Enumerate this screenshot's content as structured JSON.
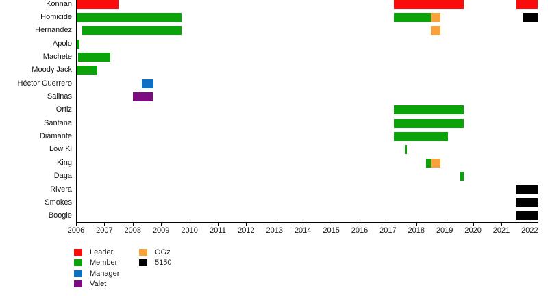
{
  "chart_data": {
    "type": "bar",
    "subtype": "gantt-timeline",
    "title": "",
    "xlabel": "",
    "ylabel": "",
    "x_range": [
      2006,
      2022.3
    ],
    "x_ticks": [
      2006,
      2007,
      2008,
      2009,
      2010,
      2011,
      2012,
      2013,
      2014,
      2015,
      2016,
      2017,
      2018,
      2019,
      2020,
      2021,
      2022
    ],
    "grid": false,
    "legend_position": "bottom-left",
    "colors": {
      "Leader": "#fb0c0c",
      "Member": "#0aa30a",
      "Manager": "#0e6fc4",
      "Valet": "#7c0d80",
      "OGz": "#f9a23c",
      "5150": "#000000"
    },
    "legend": [
      {
        "label": "Leader",
        "color": "#fb0c0c"
      },
      {
        "label": "Member",
        "color": "#0aa30a"
      },
      {
        "label": "Manager",
        "color": "#0e6fc4"
      },
      {
        "label": "Valet",
        "color": "#7c0d80"
      },
      {
        "label": "OGz",
        "color": "#f9a23c"
      },
      {
        "label": "5150",
        "color": "#000000"
      }
    ],
    "rows": [
      {
        "name": "Konnan",
        "segments": [
          {
            "role": "Leader",
            "start": 2006.0,
            "end": 2007.48
          },
          {
            "role": "Leader",
            "start": 2017.2,
            "end": 2019.67
          },
          {
            "role": "Leader",
            "start": 2021.53,
            "end": 2022.26
          }
        ]
      },
      {
        "name": "Homicide",
        "segments": [
          {
            "role": "Member",
            "start": 2006.0,
            "end": 2009.7
          },
          {
            "role": "Member",
            "start": 2017.2,
            "end": 2018.51
          },
          {
            "role": "OGz",
            "start": 2018.51,
            "end": 2018.83
          },
          {
            "role": "5150",
            "start": 2021.77,
            "end": 2022.26
          }
        ]
      },
      {
        "name": "Hernandez",
        "segments": [
          {
            "role": "Member",
            "start": 2006.2,
            "end": 2009.7
          },
          {
            "role": "OGz",
            "start": 2018.51,
            "end": 2018.83
          }
        ]
      },
      {
        "name": "Apolo",
        "segments": [
          {
            "role": "Member",
            "start": 2006.0,
            "end": 2006.12
          }
        ]
      },
      {
        "name": "Machete",
        "segments": [
          {
            "role": "Member",
            "start": 2006.07,
            "end": 2007.2
          }
        ]
      },
      {
        "name": "Moody Jack",
        "segments": [
          {
            "role": "Member",
            "start": 2006.0,
            "end": 2006.74
          }
        ]
      },
      {
        "name": "Héctor Guerrero",
        "segments": [
          {
            "role": "Manager",
            "start": 2008.3,
            "end": 2008.72
          }
        ]
      },
      {
        "name": "Salinas",
        "segments": [
          {
            "role": "Valet",
            "start": 2008.0,
            "end": 2008.69
          }
        ]
      },
      {
        "name": "Ortiz",
        "segments": [
          {
            "role": "Member",
            "start": 2017.2,
            "end": 2019.67
          }
        ]
      },
      {
        "name": "Santana",
        "segments": [
          {
            "role": "Member",
            "start": 2017.2,
            "end": 2019.67
          }
        ]
      },
      {
        "name": "Diamante",
        "segments": [
          {
            "role": "Member",
            "start": 2017.2,
            "end": 2019.1
          }
        ]
      },
      {
        "name": "Low Ki",
        "segments": [
          {
            "role": "Member",
            "start": 2017.58,
            "end": 2017.66
          }
        ]
      },
      {
        "name": "King",
        "segments": [
          {
            "role": "Member",
            "start": 2018.32,
            "end": 2018.51
          },
          {
            "role": "OGz",
            "start": 2018.51,
            "end": 2018.83
          }
        ]
      },
      {
        "name": "Daga",
        "segments": [
          {
            "role": "Member",
            "start": 2019.53,
            "end": 2019.67
          }
        ]
      },
      {
        "name": "Rivera",
        "segments": [
          {
            "role": "5150",
            "start": 2021.53,
            "end": 2022.26
          }
        ]
      },
      {
        "name": "Smokes",
        "segments": [
          {
            "role": "5150",
            "start": 2021.53,
            "end": 2022.26
          }
        ]
      },
      {
        "name": "Boogie",
        "segments": [
          {
            "role": "5150",
            "start": 2021.53,
            "end": 2022.26
          }
        ]
      }
    ]
  }
}
